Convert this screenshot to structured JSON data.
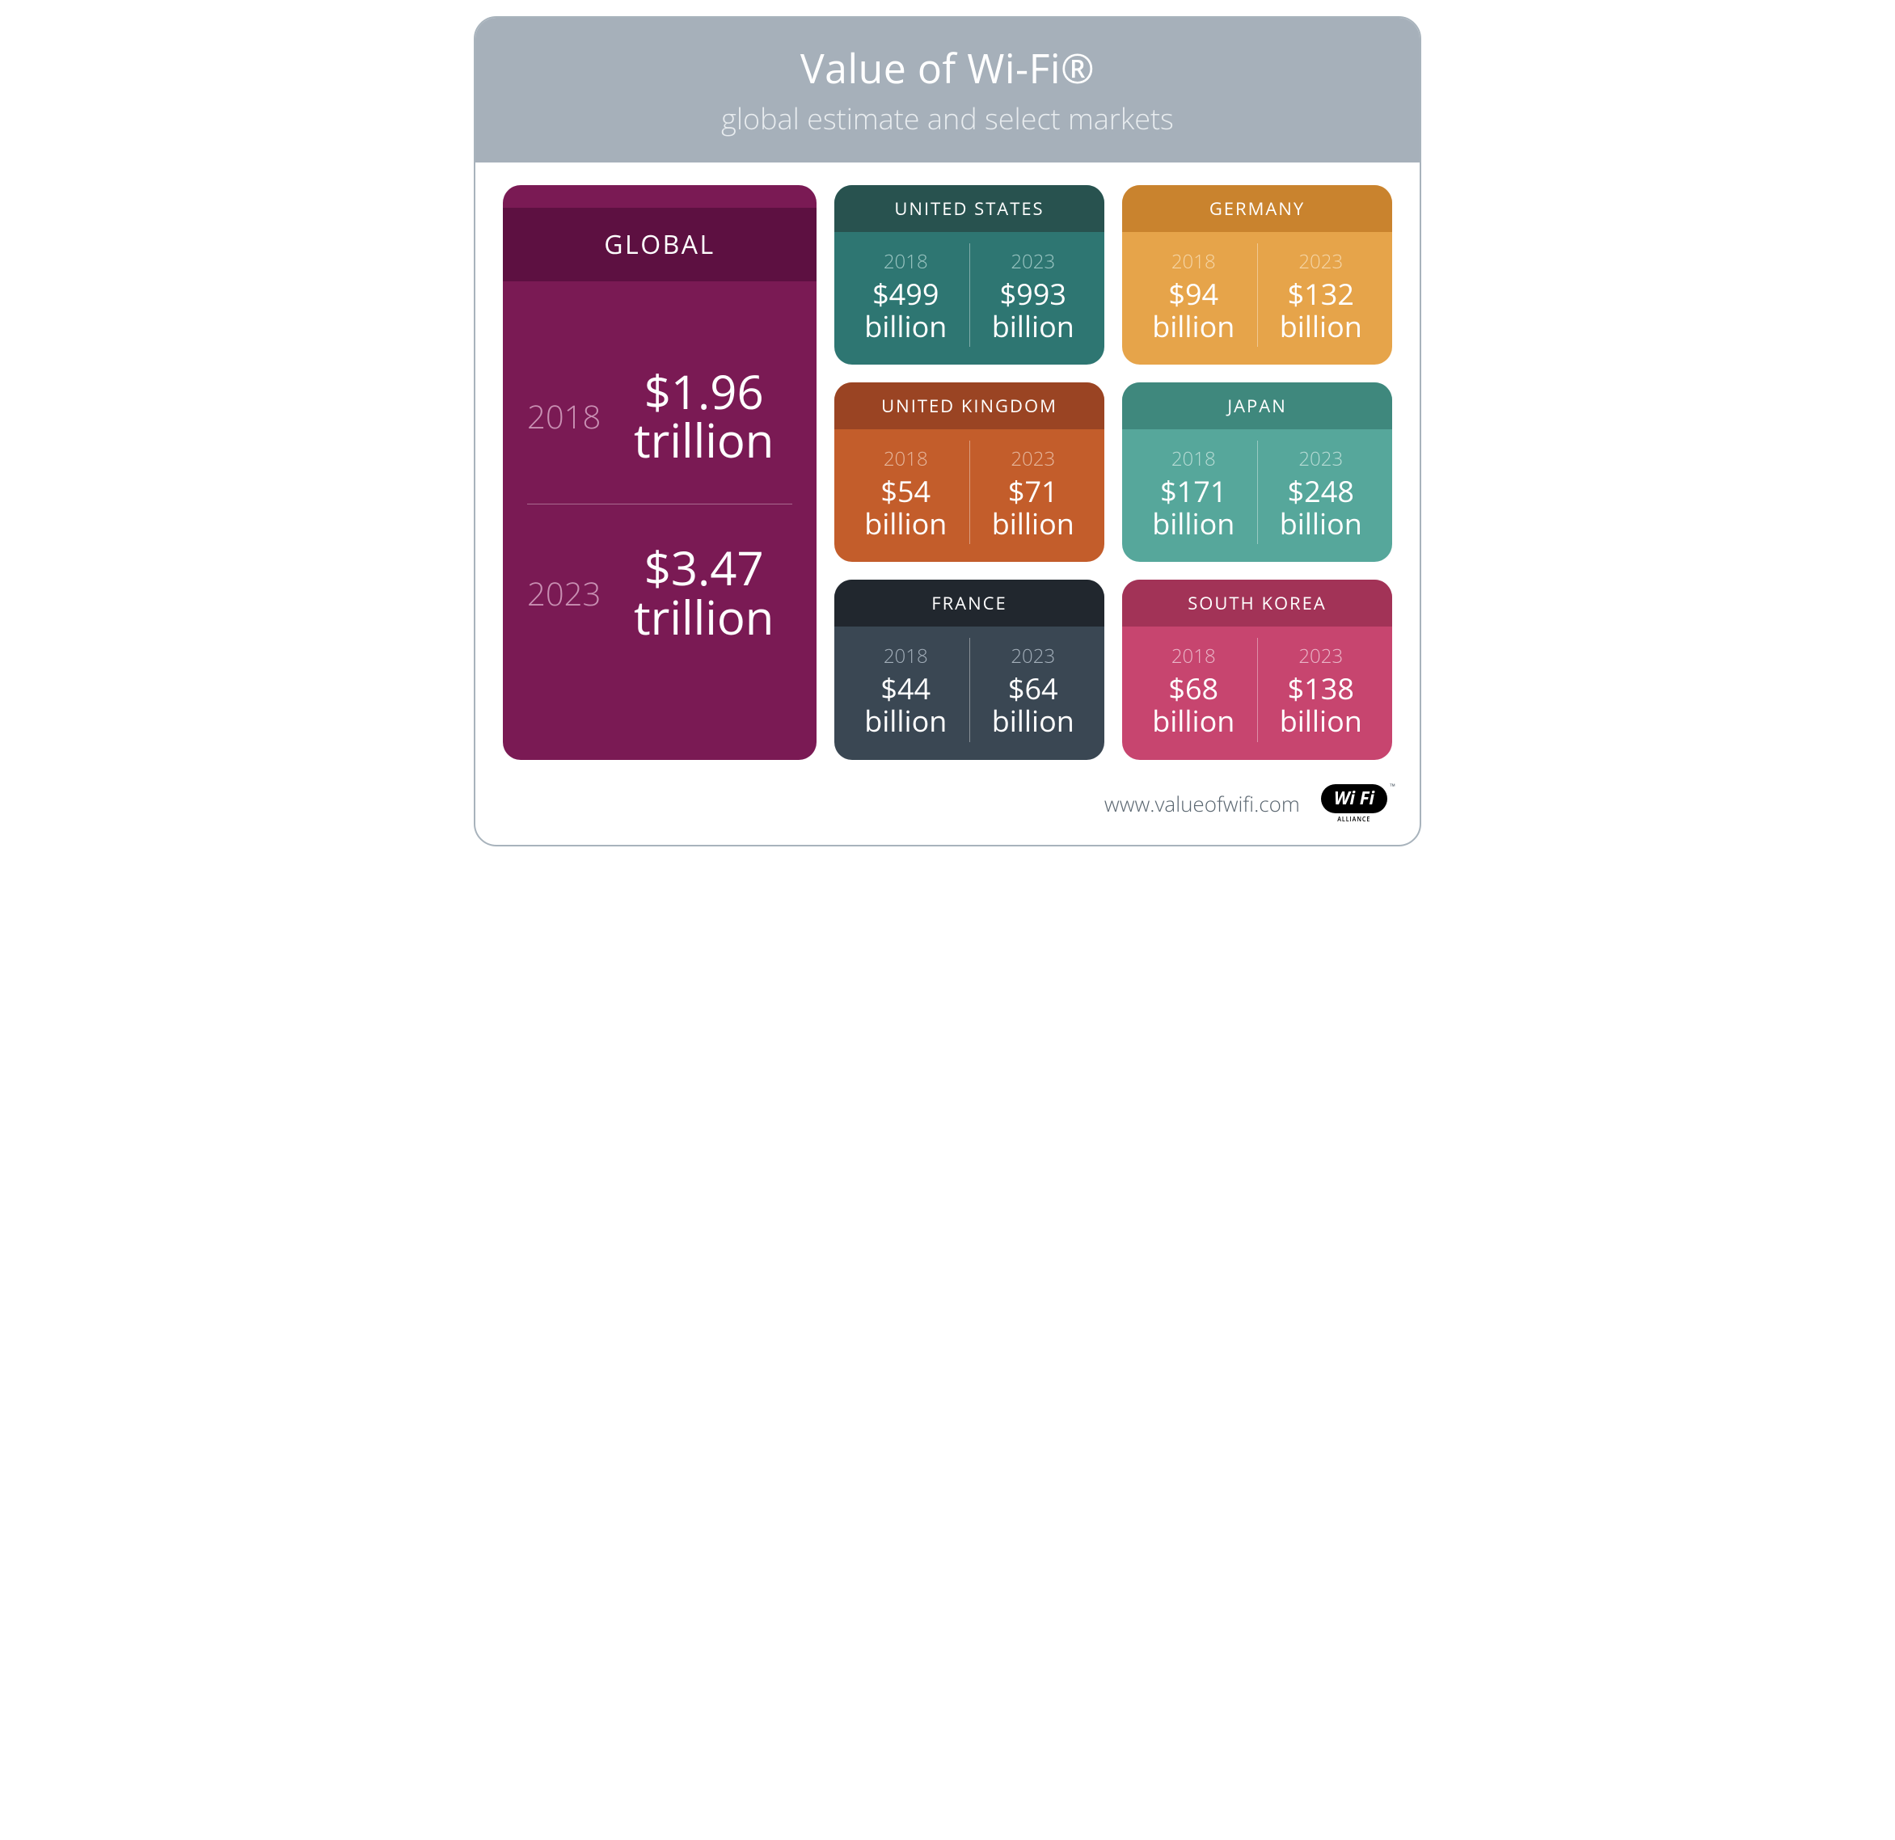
{
  "header": {
    "title": "Value of Wi-Fi®",
    "subtitle": "global estimate and select markets",
    "bg_color": "#a6b0ba",
    "title_color": "#ffffff",
    "subtitle_color": "#e8ecef",
    "title_fontsize": 50,
    "subtitle_fontsize": 36
  },
  "global": {
    "label": "GLOBAL",
    "card_bg": "#7a1a54",
    "header_bg": "#5d1041",
    "year_color": "#c990b3",
    "rows": [
      {
        "year": "2018",
        "value": "$1.96",
        "unit": "trillion"
      },
      {
        "year": "2023",
        "value": "$3.47",
        "unit": "trillion"
      }
    ]
  },
  "cards": [
    {
      "label": "UNITED STATES",
      "card_bg": "#2e7672",
      "header_bg": "#28524f",
      "year_color": "#9cc6c3",
      "left": {
        "year": "2018",
        "value": "$499",
        "unit": "billion"
      },
      "right": {
        "year": "2023",
        "value": "$993",
        "unit": "billion"
      }
    },
    {
      "label": "GERMANY",
      "card_bg": "#e6a44a",
      "header_bg": "#c9832e",
      "year_color": "#f5d6a8",
      "left": {
        "year": "2018",
        "value": "$94",
        "unit": "billion"
      },
      "right": {
        "year": "2023",
        "value": "$132",
        "unit": "billion"
      }
    },
    {
      "label": "UNITED KINGDOM",
      "card_bg": "#c35d2b",
      "header_bg": "#9a4423",
      "year_color": "#e6b79d",
      "left": {
        "year": "2018",
        "value": "$54",
        "unit": "billion"
      },
      "right": {
        "year": "2023",
        "value": "$71",
        "unit": "billion"
      }
    },
    {
      "label": "JAPAN",
      "card_bg": "#56a79b",
      "header_bg": "#3f887d",
      "year_color": "#b8dcd5",
      "left": {
        "year": "2018",
        "value": "$171",
        "unit": "billion"
      },
      "right": {
        "year": "2023",
        "value": "$248",
        "unit": "billion"
      }
    },
    {
      "label": "FRANCE",
      "card_bg": "#3a4753",
      "header_bg": "#21272e",
      "year_color": "#a3afba",
      "left": {
        "year": "2018",
        "value": "$44",
        "unit": "billion"
      },
      "right": {
        "year": "2023",
        "value": "$64",
        "unit": "billion"
      }
    },
    {
      "label": "SOUTH KOREA",
      "card_bg": "#c7456f",
      "header_bg": "#a23357",
      "year_color": "#eab6c8",
      "left": {
        "year": "2018",
        "value": "$68",
        "unit": "billion"
      },
      "right": {
        "year": "2023",
        "value": "$138",
        "unit": "billion"
      }
    }
  ],
  "footer": {
    "url": "www.valueofwifi.com",
    "url_color": "#5a6670",
    "logo_text": "Wi Fi",
    "logo_sub": "ALLIANCE"
  },
  "frame": {
    "border_color": "#a8b3bc",
    "bg_color": "#ffffff",
    "border_radius": 28
  }
}
